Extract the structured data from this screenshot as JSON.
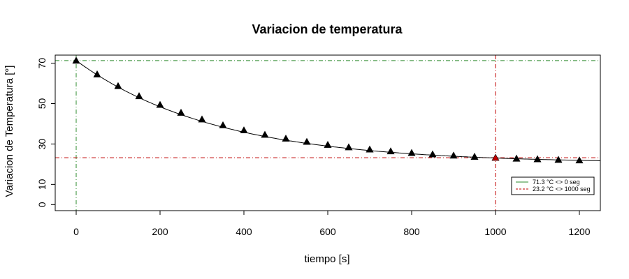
{
  "chart_data": {
    "type": "scatter",
    "title": "Variacion de temperatura",
    "xlabel": "tiempo [s]",
    "ylabel": "Variacion de Temperatura [°]",
    "xlim": [
      -50,
      1250
    ],
    "ylim": [
      -3,
      74
    ],
    "x_ticks": [
      0,
      200,
      400,
      600,
      800,
      1000,
      1200
    ],
    "y_ticks": [
      0,
      10,
      30,
      50,
      70
    ],
    "grid": false,
    "series": [
      {
        "marker": "triangle",
        "color": "#000000",
        "points": [
          [
            0,
            71.3
          ],
          [
            50,
            64.5
          ],
          [
            100,
            58.7
          ],
          [
            150,
            53.7
          ],
          [
            200,
            49.4
          ],
          [
            250,
            45.5
          ],
          [
            300,
            42.2
          ],
          [
            350,
            39.3
          ],
          [
            400,
            36.8
          ],
          [
            450,
            34.6
          ],
          [
            500,
            32.7
          ],
          [
            550,
            31.1
          ],
          [
            600,
            29.6
          ],
          [
            650,
            28.4
          ],
          [
            700,
            27.3
          ],
          [
            750,
            26.4
          ],
          [
            800,
            25.6
          ],
          [
            850,
            24.9
          ],
          [
            900,
            24.3
          ],
          [
            950,
            23.7
          ],
          [
            1000,
            23.2
          ],
          [
            1050,
            22.8
          ],
          [
            1100,
            22.5
          ],
          [
            1150,
            22.2
          ],
          [
            1200,
            21.9
          ]
        ],
        "highlight": {
          "x": 1000,
          "y": 23.2,
          "color": "#c00000"
        }
      }
    ],
    "fit_curve": {
      "color": "#000000"
    },
    "reference_lines": [
      {
        "orientation": "vertical",
        "value": 0,
        "color": "#2e8b2e",
        "style": "dashdot"
      },
      {
        "orientation": "horizontal",
        "value": 71.3,
        "color": "#2e8b2e",
        "style": "dashdot"
      },
      {
        "orientation": "vertical",
        "value": 1000,
        "color": "#c00000",
        "style": "dashdot"
      },
      {
        "orientation": "horizontal",
        "value": 23.2,
        "color": "#c00000",
        "style": "dashdot"
      }
    ],
    "legend": {
      "placement": "bottom-right",
      "entries": [
        {
          "label": "71.3 °C <> 0 seg",
          "color": "#2e8b2e"
        },
        {
          "label": "23.2 °C <> 1000 seg",
          "color": "#c00000"
        }
      ]
    }
  }
}
